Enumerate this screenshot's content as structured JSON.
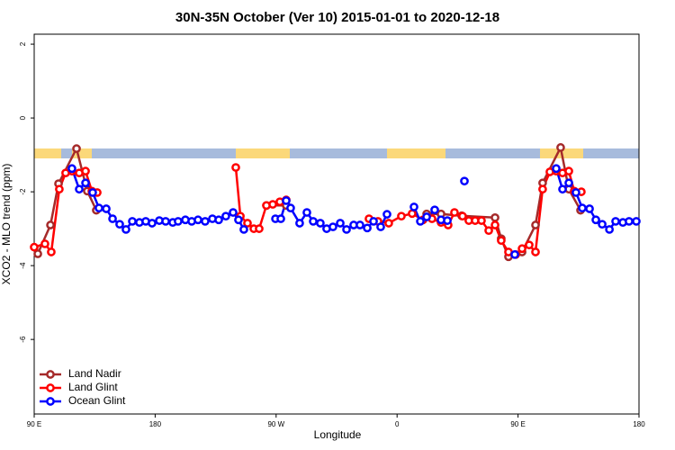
{
  "chart_data": {
    "type": "line",
    "title": "30N-35N October (Ver 10)   2015-01-01 to 2020-12-18",
    "x_label": "Longitude",
    "y_label": "XCO2 - MLO trend (ppm)",
    "xlim": [
      90,
      540
    ],
    "xticks": [
      {
        "value": 90,
        "label": "90 E"
      },
      180,
      {
        "value": 270,
        "label": "90 W"
      },
      {
        "value": 360,
        "label": "0"
      },
      {
        "value": 450,
        "label": "90 E"
      },
      {
        "value": 540,
        "label": "180"
      }
    ],
    "ylim": [
      -8.02,
      2.27
    ],
    "yticks": [
      -6,
      -4,
      -2,
      0,
      2
    ],
    "legend": "bottom-left",
    "series": [
      {
        "name": "Land Nadir",
        "color": "#a52a2a",
        "x": [
          92.7,
          102.1,
          108.1,
          121.5,
          129.5,
          136.2,
          null,
          262.8,
          277.5,
          null,
          382.0,
          392.7,
          408.1,
          432.9,
          437.5,
          442.9,
          453.0,
          463.0,
          468.3,
          481.7,
          487.8,
          496.5
        ],
        "values": [
          -3.68,
          -2.9,
          -1.78,
          -0.83,
          -1.98,
          -2.5,
          null,
          -2.37,
          -2.37,
          null,
          -2.6,
          -2.6,
          -2.65,
          -2.7,
          -3.27,
          -3.76,
          -3.63,
          -2.9,
          -1.76,
          -0.8,
          -1.93,
          -2.5
        ]
      },
      {
        "name": "Land Glint",
        "color": "#ff0000",
        "x": [
          90,
          98,
          102.7,
          108.7,
          113.4,
          118.1,
          123.5,
          128.2,
          132.9,
          136.9,
          null,
          240.0,
          243.4,
          248.7,
          253.4,
          257.4,
          262.8,
          267.5,
          272.8,
          277.5,
          null,
          339.1,
          345.8,
          353.8,
          363.2,
          371.2,
          379.3,
          386.0,
          392.7,
          398.0,
          402.7,
          408.7,
          413.4,
          418.1,
          422.8,
          428.2,
          432.9,
          437.5,
          442.9,
          448.3,
          453.0,
          458.3,
          463.0,
          468.3,
          473.7,
          478.4,
          483.1,
          487.8,
          491.8,
          497.1
        ],
        "values": [
          -3.5,
          -3.41,
          -3.63,
          -1.93,
          -1.49,
          -1.44,
          -1.49,
          -1.44,
          -1.98,
          -2.02,
          null,
          -1.34,
          -2.66,
          -2.85,
          -3.0,
          -3.0,
          -2.37,
          -2.34,
          -2.27,
          -2.22,
          null,
          -2.73,
          -2.8,
          -2.85,
          -2.66,
          -2.59,
          -2.76,
          -2.73,
          -2.83,
          -2.9,
          -2.56,
          -2.66,
          -2.78,
          -2.78,
          -2.78,
          -3.05,
          -2.9,
          -3.32,
          -3.63,
          -3.7,
          -3.54,
          -3.44,
          -3.63,
          -1.93,
          -1.46,
          -1.44,
          -1.49,
          -1.44,
          -1.98,
          -2.0
        ]
      },
      {
        "name": "Ocean Glint",
        "color": "#0000ff",
        "x": [
          118.1,
          123.5,
          128.2,
          133.5,
          138.2,
          143.6,
          148.3,
          153.6,
          158.3,
          163.0,
          168.3,
          173.0,
          177.7,
          183.1,
          187.8,
          193.1,
          197.1,
          202.5,
          207.2,
          211.9,
          217.2,
          222.6,
          227.3,
          232.6,
          238.0,
          242.0,
          246.0,
          null,
          269.5,
          273.5,
          277.5,
          280.8,
          287.5,
          292.9,
          297.6,
          302.9,
          307.6,
          312.3,
          317.7,
          322.4,
          327.7,
          332.4,
          337.8,
          342.5,
          347.8,
          352.5,
          null,
          372.6,
          377.3,
          382.0,
          388.0,
          392.7,
          397.4,
          null,
          410.1,
          null,
          447.6,
          null,
          478.4,
          483.1,
          487.8,
          493.1,
          497.8,
          503.2,
          507.9,
          512.6,
          518.0,
          522.6,
          528.0,
          532.6,
          538.0
        ],
        "values": [
          -1.37,
          -1.93,
          -1.76,
          -2.02,
          -2.44,
          -2.46,
          -2.73,
          -2.88,
          -3.02,
          -2.8,
          -2.83,
          -2.8,
          -2.85,
          -2.78,
          -2.8,
          -2.83,
          -2.8,
          -2.76,
          -2.8,
          -2.76,
          -2.8,
          -2.73,
          -2.76,
          -2.66,
          -2.56,
          -2.76,
          -3.02,
          null,
          -2.73,
          -2.73,
          -2.24,
          -2.44,
          -2.85,
          -2.56,
          -2.8,
          -2.85,
          -3.0,
          -2.95,
          -2.85,
          -3.02,
          -2.9,
          -2.9,
          -2.98,
          -2.8,
          -2.95,
          -2.61,
          null,
          -2.41,
          -2.8,
          -2.68,
          -2.49,
          -2.76,
          -2.78,
          null,
          -1.71,
          null,
          -3.7,
          null,
          -1.37,
          -1.93,
          -1.76,
          -2.02,
          -2.44,
          -2.46,
          -2.76,
          -2.88,
          -3.02,
          -2.8,
          -2.83,
          -2.8,
          -2.8
        ]
      }
    ]
  }
}
